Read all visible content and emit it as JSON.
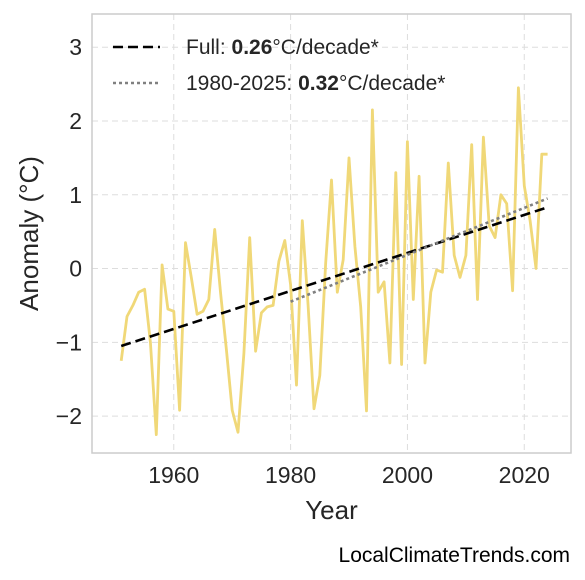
{
  "chart_data": {
    "type": "line",
    "title": "",
    "xlabel": "Year",
    "ylabel": "Anomaly (°C)",
    "xlim": [
      1946,
      2028
    ],
    "ylim": [
      -2.5,
      3.45
    ],
    "xticks": [
      1960,
      1980,
      2000,
      2020
    ],
    "yticks": [
      -2,
      -1,
      0,
      1,
      2,
      3
    ],
    "ytick_labels": [
      "−2",
      "−1",
      "0",
      "1",
      "2",
      "3"
    ],
    "grid": true,
    "legend_position": "top-left",
    "series": [
      {
        "style": "solid",
        "color": "#f0d878",
        "x": [
          1951,
          1952,
          1953,
          1954,
          1955,
          1956,
          1957,
          1958,
          1959,
          1960,
          1961,
          1962,
          1963,
          1964,
          1965,
          1966,
          1967,
          1968,
          1969,
          1970,
          1971,
          1972,
          1973,
          1974,
          1975,
          1976,
          1977,
          1978,
          1979,
          1980,
          1981,
          1982,
          1983,
          1984,
          1985,
          1986,
          1987,
          1988,
          1989,
          1990,
          1991,
          1992,
          1993,
          1994,
          1995,
          1996,
          1997,
          1998,
          1999,
          2000,
          2001,
          2002,
          2003,
          2004,
          2005,
          2006,
          2007,
          2008,
          2009,
          2010,
          2011,
          2012,
          2013,
          2014,
          2015,
          2016,
          2017,
          2018,
          2019,
          2020,
          2021,
          2022,
          2023,
          2024
        ],
        "y": [
          -1.25,
          -0.65,
          -0.5,
          -0.32,
          -0.28,
          -1.0,
          -2.25,
          0.05,
          -0.55,
          -0.58,
          -1.92,
          0.35,
          -0.12,
          -0.62,
          -0.58,
          -0.42,
          0.53,
          -0.32,
          -1.1,
          -1.92,
          -2.22,
          -1.15,
          0.42,
          -1.12,
          -0.6,
          -0.52,
          -0.5,
          0.1,
          0.38,
          -0.22,
          -1.58,
          0.65,
          -0.5,
          -1.9,
          -1.45,
          0.08,
          1.2,
          -0.32,
          0.12,
          1.5,
          0.3,
          -0.52,
          -1.93,
          2.15,
          -0.32,
          -0.18,
          -1.28,
          1.3,
          -1.3,
          1.72,
          -0.42,
          1.25,
          -1.28,
          -0.32,
          -0.02,
          -0.05,
          1.43,
          0.18,
          -0.12,
          0.18,
          1.68,
          -0.42,
          1.78,
          0.58,
          0.42,
          1.0,
          0.88,
          -0.3,
          2.45,
          1.12,
          0.65,
          0.0,
          1.55,
          1.55
        ]
      },
      {
        "name": "Full: ",
        "style": "dashed",
        "color": "#000000",
        "x": [
          1951,
          2024
        ],
        "y": [
          -1.05,
          0.83
        ]
      },
      {
        "name": "1980-2025: ",
        "style": "dotted",
        "color": "#808080",
        "x": [
          1980,
          2024
        ],
        "y": [
          -0.45,
          0.95
        ]
      }
    ],
    "legend": [
      {
        "prefix": "Full: ",
        "value": "0.26",
        "suffix": "°C/decade*"
      },
      {
        "prefix": "1980-2025: ",
        "value": "0.32",
        "suffix": "°C/decade*"
      }
    ]
  },
  "credit": "LocalClimateTrends.com"
}
